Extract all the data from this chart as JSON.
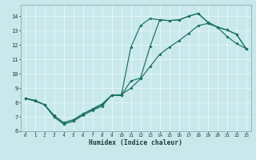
{
  "xlabel": "Humidex (Indice chaleur)",
  "bg_color": "#c8e8ec",
  "grid_color": "#e8f8fa",
  "line_color": "#1a7060",
  "spine_color": "#8ab8b8",
  "tick_color": "#1a3a3a",
  "xlim_min": -0.5,
  "xlim_max": 23.5,
  "ylim_min": 6,
  "ylim_max": 14.8,
  "xticks": [
    0,
    1,
    2,
    3,
    4,
    5,
    6,
    7,
    8,
    9,
    10,
    11,
    12,
    13,
    14,
    15,
    16,
    17,
    18,
    19,
    20,
    21,
    22,
    23
  ],
  "yticks": [
    6,
    7,
    8,
    9,
    10,
    11,
    12,
    13,
    14
  ],
  "curve1_x": [
    0,
    1,
    2,
    3,
    4,
    5,
    6,
    7,
    8,
    9,
    10,
    11,
    12,
    13,
    14,
    15,
    16,
    17,
    18,
    19,
    20,
    21,
    22,
    23
  ],
  "curve1_y": [
    8.3,
    8.1,
    7.85,
    7.0,
    6.5,
    6.7,
    7.1,
    7.45,
    7.75,
    8.5,
    8.5,
    11.85,
    13.35,
    13.85,
    13.75,
    13.7,
    13.75,
    14.0,
    14.2,
    13.6,
    13.25,
    13.05,
    12.75,
    11.75
  ],
  "curve2_x": [
    0,
    1,
    2,
    3,
    4,
    5,
    6,
    7,
    8,
    9,
    10,
    11,
    12,
    13,
    14,
    15,
    16,
    17,
    18,
    19,
    20,
    21,
    22,
    23
  ],
  "curve2_y": [
    8.3,
    8.1,
    7.85,
    7.0,
    6.5,
    6.7,
    7.2,
    7.5,
    7.85,
    8.5,
    8.5,
    9.5,
    9.7,
    11.9,
    13.75,
    13.7,
    13.75,
    14.0,
    14.2,
    13.6,
    13.25,
    13.05,
    12.75,
    11.75
  ],
  "curve3_x": [
    0,
    1,
    2,
    3,
    4,
    5,
    6,
    7,
    8,
    9,
    10,
    11,
    12,
    13,
    14,
    15,
    16,
    17,
    18,
    19,
    20,
    21,
    22,
    23
  ],
  "curve3_y": [
    8.3,
    8.15,
    7.85,
    7.1,
    6.6,
    6.8,
    7.2,
    7.55,
    7.9,
    8.5,
    8.55,
    9.0,
    9.65,
    10.5,
    11.35,
    11.85,
    12.3,
    12.8,
    13.35,
    13.5,
    13.25,
    12.6,
    12.1,
    11.75
  ]
}
